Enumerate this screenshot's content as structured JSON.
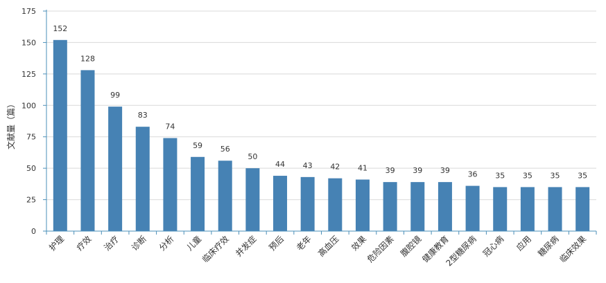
{
  "chart_data": {
    "type": "bar",
    "title": "",
    "xlabel": "",
    "ylabel": "文献量（篇）",
    "ylim": [
      0,
      175
    ],
    "yticks": [
      0,
      25,
      50,
      75,
      100,
      125,
      150,
      175
    ],
    "grid": true,
    "legend": "none",
    "bar_color": "#4682b4",
    "categories": [
      "护理",
      "疗效",
      "治疗",
      "诊断",
      "分析",
      "儿童",
      "临床疗效",
      "并发症",
      "预后",
      "老年",
      "高血压",
      "效果",
      "危险因素",
      "腹腔镜",
      "健康教育",
      "2型糖尿病",
      "冠心病",
      "应用",
      "糖尿病",
      "临床效果"
    ],
    "values": [
      152,
      128,
      99,
      83,
      74,
      59,
      56,
      50,
      44,
      43,
      42,
      41,
      39,
      39,
      39,
      36,
      35,
      35,
      35,
      35
    ]
  }
}
